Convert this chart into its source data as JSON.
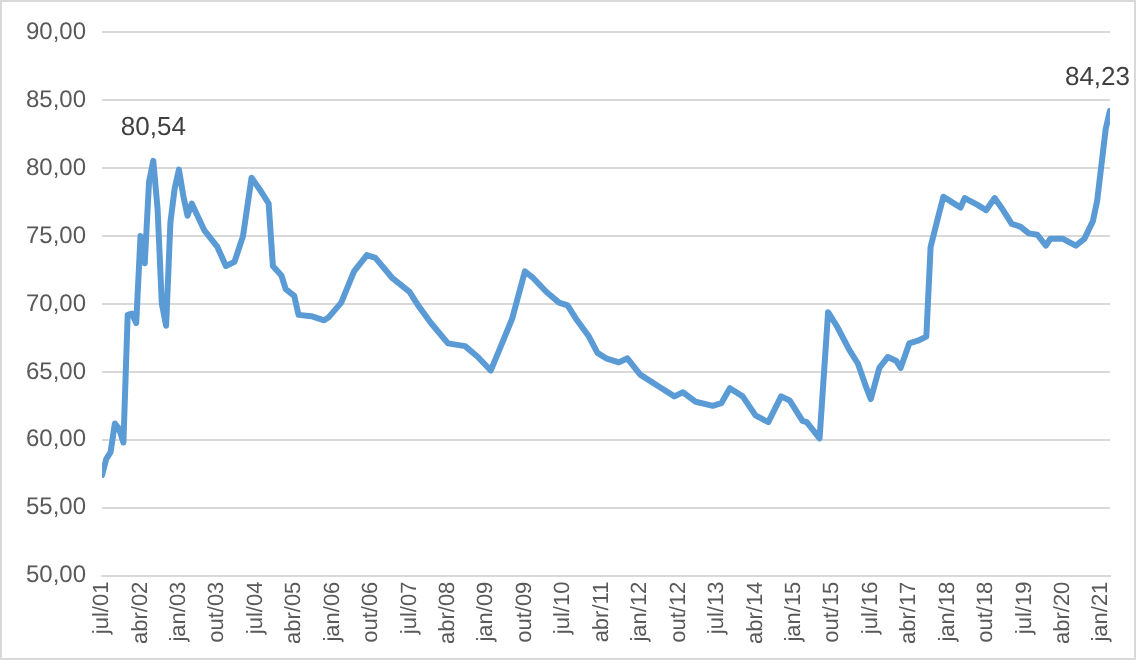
{
  "chart_data": {
    "type": "line",
    "color": "#5b9bd5",
    "marker": "none",
    "grid": "y",
    "legend": false,
    "x": [
      "2001-07",
      "2001-08",
      "2001-09",
      "2001-10",
      "2001-11",
      "2001-12",
      "2002-01",
      "2002-02",
      "2002-03",
      "2002-04",
      "2002-05",
      "2002-06",
      "2002-07",
      "2002-08",
      "2002-09",
      "2002-10",
      "2002-11",
      "2002-12",
      "2003-01",
      "2003-02",
      "2003-03",
      "2003-04",
      "2003-07",
      "2003-10",
      "2003-12",
      "2004-02",
      "2004-04",
      "2004-06",
      "2004-08",
      "2004-10",
      "2004-11",
      "2005-01",
      "2005-02",
      "2005-04",
      "2005-05",
      "2005-08",
      "2005-11",
      "2005-12",
      "2006-03",
      "2006-06",
      "2006-09",
      "2006-11",
      "2007-03",
      "2007-07",
      "2007-09",
      "2007-12",
      "2008-04",
      "2008-08",
      "2008-11",
      "2009-02",
      "2009-04",
      "2009-07",
      "2009-10",
      "2009-12",
      "2010-03",
      "2010-06",
      "2010-08",
      "2010-10",
      "2011-01",
      "2011-03",
      "2011-05",
      "2011-08",
      "2011-10",
      "2012-01",
      "2012-06",
      "2012-09",
      "2012-11",
      "2013-02",
      "2013-06",
      "2013-08",
      "2013-10",
      "2014-01",
      "2014-04",
      "2014-07",
      "2014-10",
      "2014-12",
      "2015-03",
      "2015-04",
      "2015-07",
      "2015-09",
      "2015-11",
      "2016-02",
      "2016-04",
      "2016-06",
      "2016-07",
      "2016-09",
      "2016-11",
      "2017-01",
      "2017-02",
      "2017-04",
      "2017-06",
      "2017-08",
      "2017-09",
      "2017-11",
      "2017-12",
      "2018-03",
      "2018-04",
      "2018-05",
      "2018-08",
      "2018-10",
      "2018-12",
      "2019-02",
      "2019-04",
      "2019-06",
      "2019-08",
      "2019-10",
      "2019-12",
      "2020-01",
      "2020-04",
      "2020-07",
      "2020-09",
      "2020-11",
      "2020-12",
      "2021-02",
      "2021-03"
    ],
    "values": [
      57.4,
      58.6,
      59.1,
      61.2,
      60.8,
      59.8,
      69.2,
      69.3,
      68.6,
      75.0,
      73.0,
      79.0,
      80.54,
      77.0,
      70.0,
      68.4,
      76.0,
      78.5,
      79.9,
      78.0,
      76.5,
      77.4,
      75.4,
      74.2,
      72.8,
      73.1,
      75.0,
      79.3,
      78.4,
      77.4,
      72.8,
      72.1,
      71.1,
      70.6,
      69.2,
      69.1,
      68.8,
      69.0,
      70.1,
      72.4,
      73.6,
      73.4,
      71.9,
      70.9,
      69.9,
      68.6,
      67.1,
      66.9,
      66.1,
      65.1,
      66.6,
      68.9,
      72.4,
      71.9,
      70.9,
      70.1,
      69.9,
      68.9,
      67.6,
      66.4,
      66.0,
      65.7,
      66.0,
      64.8,
      63.8,
      63.2,
      63.5,
      62.8,
      62.5,
      62.7,
      63.8,
      63.2,
      61.8,
      61.3,
      63.2,
      62.9,
      61.4,
      61.3,
      60.1,
      69.4,
      68.4,
      66.6,
      65.6,
      63.8,
      63.0,
      65.3,
      66.1,
      65.8,
      65.3,
      67.1,
      67.3,
      67.6,
      74.2,
      76.7,
      77.9,
      77.3,
      77.1,
      77.8,
      77.3,
      76.9,
      77.8,
      76.9,
      75.9,
      75.7,
      75.2,
      75.1,
      74.3,
      74.8,
      74.8,
      74.3,
      74.8,
      76.1,
      77.6,
      82.9,
      84.23
    ],
    "value_labels": [
      null,
      null,
      null,
      null,
      null,
      null,
      null,
      null,
      null,
      null,
      null,
      null,
      "80,54",
      null,
      null,
      null,
      null,
      null,
      null,
      null,
      null,
      null,
      null,
      null,
      null,
      null,
      null,
      null,
      null,
      null,
      null,
      null,
      null,
      null,
      null,
      null,
      null,
      null,
      null,
      null,
      null,
      null,
      null,
      null,
      null,
      null,
      null,
      null,
      null,
      null,
      null,
      null,
      null,
      null,
      null,
      null,
      null,
      null,
      null,
      null,
      null,
      null,
      null,
      null,
      null,
      null,
      null,
      null,
      null,
      null,
      null,
      null,
      null,
      null,
      null,
      null,
      null,
      null,
      null,
      null,
      null,
      null,
      null,
      null,
      null,
      null,
      null,
      null,
      null,
      null,
      null,
      null,
      null,
      null,
      null,
      null,
      null,
      null,
      null,
      null,
      null,
      null,
      null,
      null,
      null,
      null,
      null,
      null,
      null,
      null,
      null,
      null,
      null,
      null,
      "84,23"
    ],
    "ylim": [
      50,
      90
    ],
    "yticks": [
      {
        "value": 50,
        "label": "50,00"
      },
      {
        "value": 55,
        "label": "55,00"
      },
      {
        "value": 60,
        "label": "60,00"
      },
      {
        "value": 65,
        "label": "65,00"
      },
      {
        "value": 70,
        "label": "70,00"
      },
      {
        "value": 75,
        "label": "75,00"
      },
      {
        "value": 80,
        "label": "80,00"
      },
      {
        "value": 85,
        "label": "85,00"
      },
      {
        "value": 90,
        "label": "90,00"
      }
    ],
    "xlim": [
      "2001-07",
      "2021-03"
    ],
    "xticks": [
      {
        "value": "2001-07",
        "label": "jul/01"
      },
      {
        "value": "2002-04",
        "label": "abr/02"
      },
      {
        "value": "2003-01",
        "label": "jan/03"
      },
      {
        "value": "2003-10",
        "label": "out/03"
      },
      {
        "value": "2004-07",
        "label": "jul/04"
      },
      {
        "value": "2005-04",
        "label": "abr/05"
      },
      {
        "value": "2006-01",
        "label": "jan/06"
      },
      {
        "value": "2006-10",
        "label": "out/06"
      },
      {
        "value": "2007-07",
        "label": "jul/07"
      },
      {
        "value": "2008-04",
        "label": "abr/08"
      },
      {
        "value": "2009-01",
        "label": "jan/09"
      },
      {
        "value": "2009-10",
        "label": "out/09"
      },
      {
        "value": "2010-07",
        "label": "jul/10"
      },
      {
        "value": "2011-04",
        "label": "abr/11"
      },
      {
        "value": "2012-01",
        "label": "jan/12"
      },
      {
        "value": "2012-10",
        "label": "out/12"
      },
      {
        "value": "2013-07",
        "label": "jul/13"
      },
      {
        "value": "2014-04",
        "label": "abr/14"
      },
      {
        "value": "2015-01",
        "label": "jan/15"
      },
      {
        "value": "2015-10",
        "label": "out/15"
      },
      {
        "value": "2016-07",
        "label": "jul/16"
      },
      {
        "value": "2017-04",
        "label": "abr/17"
      },
      {
        "value": "2018-01",
        "label": "jan/18"
      },
      {
        "value": "2018-10",
        "label": "out/18"
      },
      {
        "value": "2019-07",
        "label": "jul/19"
      },
      {
        "value": "2020-04",
        "label": "abr/20"
      },
      {
        "value": "2021-01",
        "label": "jan/21"
      }
    ]
  }
}
